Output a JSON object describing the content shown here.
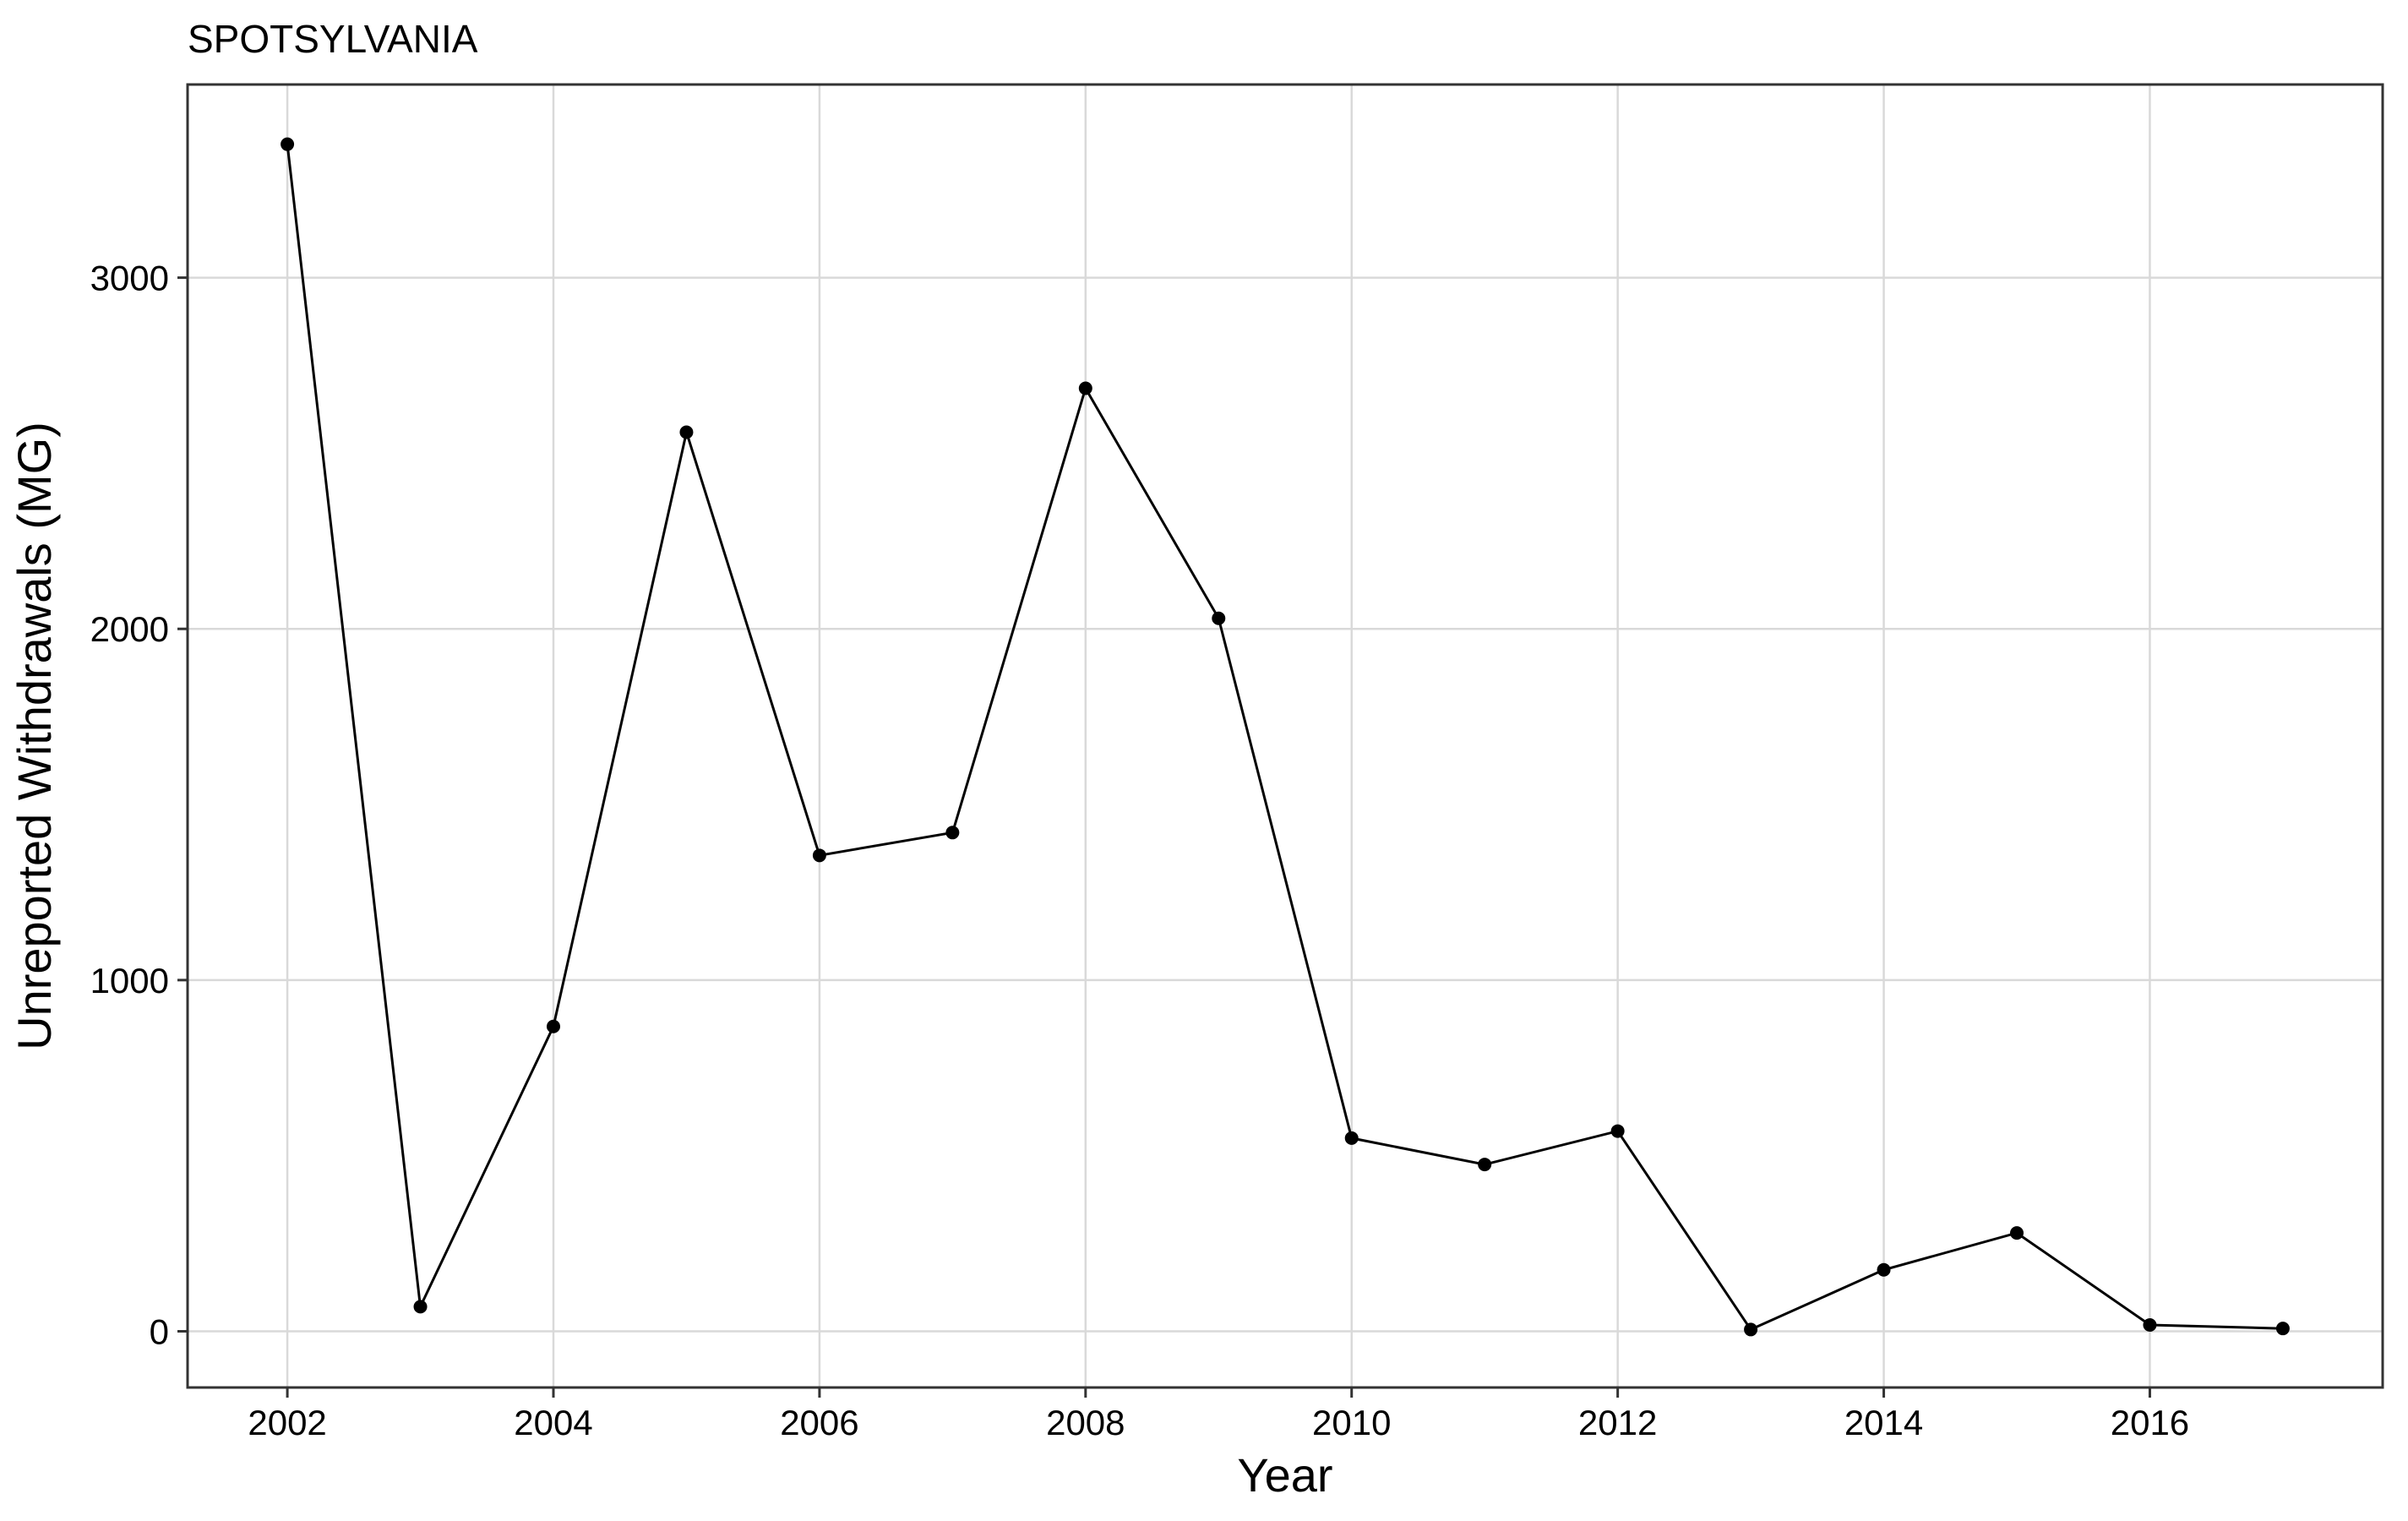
{
  "chart_data": {
    "type": "line",
    "title": "SPOTSYLVANIA",
    "xlabel": "Year",
    "ylabel": "Unreported Withdrawals (MG)",
    "xlim": [
      2001.25,
      2017.75
    ],
    "ylim": [
      -160,
      3550
    ],
    "x_ticks": [
      2002,
      2004,
      2006,
      2008,
      2010,
      2012,
      2014,
      2016
    ],
    "x_tick_labels": [
      "2002",
      "2004",
      "2006",
      "2008",
      "2010",
      "2012",
      "2014",
      "2016"
    ],
    "y_ticks": [
      0,
      1000,
      2000,
      3000
    ],
    "y_tick_labels": [
      "0",
      "1000",
      "2000",
      "3000"
    ],
    "grid": true,
    "colors": {
      "line": "#000000",
      "points": "#000000",
      "grid": "#d9d9d9",
      "panel_border": "#333333",
      "background": "#ffffff"
    },
    "series": [
      {
        "x": [
          2002,
          2003,
          2004,
          2005,
          2006,
          2007,
          2008,
          2009,
          2010,
          2011,
          2012,
          2013,
          2014,
          2015,
          2016,
          2017
        ],
        "values": [
          3380,
          70,
          868,
          2560,
          1355,
          1420,
          2685,
          2030,
          550,
          475,
          570,
          5,
          175,
          280,
          18,
          8
        ]
      }
    ]
  }
}
